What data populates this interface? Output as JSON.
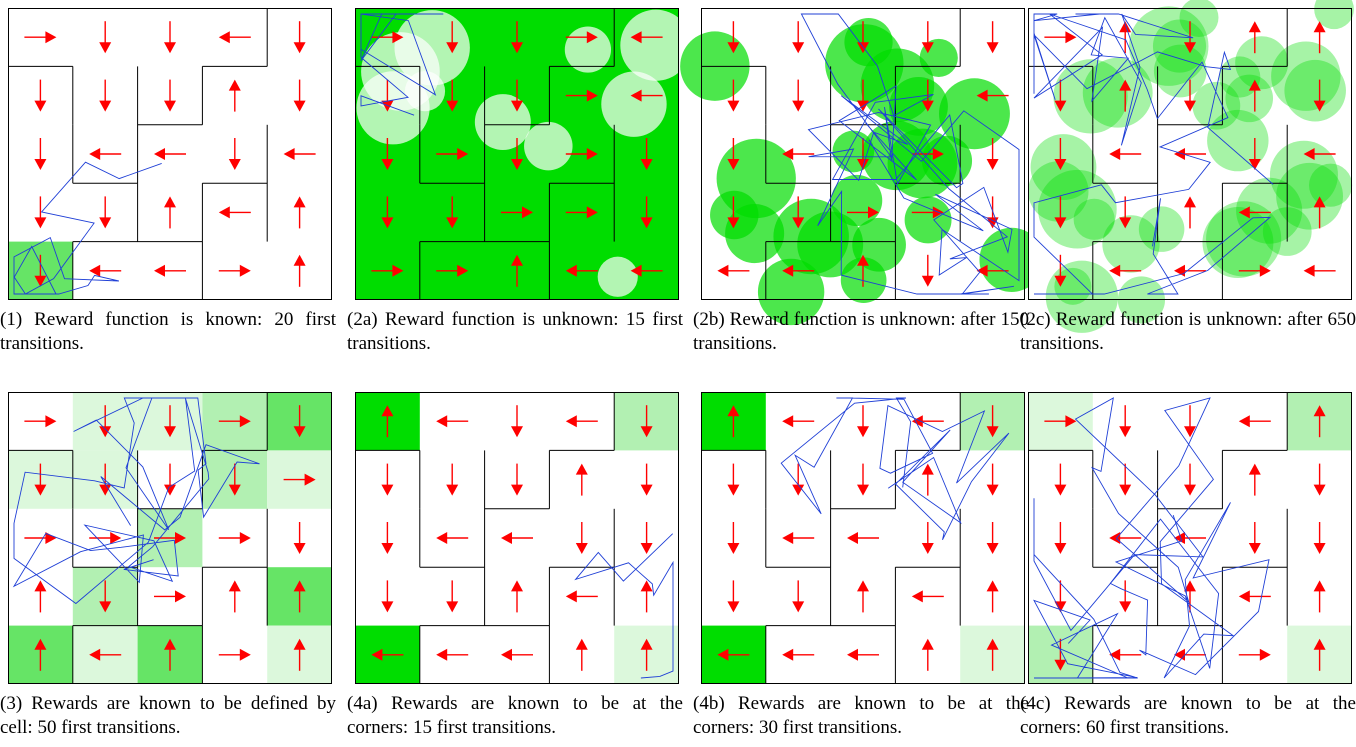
{
  "colors": {
    "arrow": "#ff0000",
    "trajectory": "#1f3fd6",
    "wall": "#000000",
    "reward_bright": "#00dd00",
    "reward_mid": "#66e466",
    "reward_light": "#b2f0b2",
    "reward_faint": "#dcf8dc"
  },
  "panels": [
    {
      "caption": "(1) Reward function is known: 20 first transitions.",
      "background": "white",
      "cells": [
        [
          4,
          0,
          "mid"
        ]
      ],
      "arrows": [
        [
          "R",
          "D",
          "D",
          "L",
          "D"
        ],
        [
          "D",
          "D",
          "D",
          "U",
          "D"
        ],
        [
          "D",
          "L",
          "L",
          "D",
          "L"
        ],
        [
          "D",
          "D",
          "U",
          "L",
          "U"
        ],
        [
          "D",
          "L",
          "L",
          "R",
          "U"
        ]
      ]
    },
    {
      "caption": "(2a) Reward function is unknown: 15 first transitions.",
      "background": "green-bright",
      "cells": [],
      "arrows": [
        [
          "R",
          "D",
          "D",
          "R",
          "L"
        ],
        [
          "D",
          "D",
          "D",
          "R",
          "L"
        ],
        [
          "D",
          "R",
          "D",
          "R",
          "D"
        ],
        [
          "D",
          "D",
          "R",
          "R",
          "D"
        ],
        [
          "R",
          "R",
          "U",
          "L",
          "L"
        ]
      ]
    },
    {
      "caption": "(2b) Reward function is unknown: after 150 transitions.",
      "background": "green-mottled",
      "cells": [],
      "arrows": [
        [
          "D",
          "D",
          "D",
          "D",
          "D"
        ],
        [
          "D",
          "D",
          "D",
          "D",
          "L"
        ],
        [
          "D",
          "L",
          "D",
          "R",
          "D"
        ],
        [
          "D",
          "D",
          "R",
          "R",
          "D"
        ],
        [
          "L",
          "L",
          "U",
          "D",
          "L"
        ]
      ]
    },
    {
      "caption": "(2c) Reward function is unknown: after 650 transitions.",
      "background": "green-faint",
      "cells": [],
      "arrows": [
        [
          "R",
          "U",
          "D",
          "U",
          "U"
        ],
        [
          "D",
          "U",
          "D",
          "U",
          "D"
        ],
        [
          "D",
          "L",
          "L",
          "D",
          "L"
        ],
        [
          "D",
          "D",
          "U",
          "L",
          "U"
        ],
        [
          "D",
          "L",
          "L",
          "R",
          "L"
        ]
      ]
    },
    {
      "caption": "(3) Rewards are known to be defined by cell: 50 first transitions.",
      "background": "white",
      "cells": [
        [
          0,
          1,
          "faint"
        ],
        [
          0,
          2,
          "faint"
        ],
        [
          0,
          3,
          "light"
        ],
        [
          0,
          4,
          "mid"
        ],
        [
          1,
          0,
          "faint"
        ],
        [
          1,
          1,
          "faint"
        ],
        [
          1,
          3,
          "light"
        ],
        [
          1,
          4,
          "faint"
        ],
        [
          2,
          2,
          "light"
        ],
        [
          3,
          1,
          "light"
        ],
        [
          3,
          4,
          "mid"
        ],
        [
          4,
          0,
          "mid"
        ],
        [
          4,
          1,
          "faint"
        ],
        [
          4,
          2,
          "mid"
        ],
        [
          4,
          4,
          "faint"
        ]
      ],
      "arrows": [
        [
          "R",
          "D",
          "D",
          "R",
          "D"
        ],
        [
          "D",
          "D",
          "D",
          "D",
          "R"
        ],
        [
          "R",
          "R",
          "R",
          "R",
          "D"
        ],
        [
          "U",
          "D",
          "R",
          "U",
          "U"
        ],
        [
          "U",
          "L",
          "U",
          "R",
          "U"
        ]
      ]
    },
    {
      "caption": "(4a) Rewards are known to be at the corners: 15 first transitions.",
      "background": "white",
      "cells": [
        [
          0,
          0,
          "bright"
        ],
        [
          0,
          4,
          "light"
        ],
        [
          4,
          0,
          "bright"
        ],
        [
          4,
          4,
          "faint"
        ]
      ],
      "arrows": [
        [
          "U",
          "L",
          "D",
          "L",
          "D"
        ],
        [
          "D",
          "D",
          "D",
          "U",
          "D"
        ],
        [
          "D",
          "L",
          "L",
          "D",
          "D"
        ],
        [
          "D",
          "D",
          "U",
          "L",
          "U"
        ],
        [
          "L",
          "L",
          "L",
          "U",
          "U"
        ]
      ]
    },
    {
      "caption": "(4b) Rewards are known to be at the corners: 30 first transitions.",
      "background": "white",
      "cells": [
        [
          0,
          0,
          "bright"
        ],
        [
          0,
          4,
          "light"
        ],
        [
          4,
          0,
          "bright"
        ],
        [
          4,
          4,
          "faint"
        ]
      ],
      "arrows": [
        [
          "U",
          "L",
          "D",
          "L",
          "D"
        ],
        [
          "D",
          "D",
          "D",
          "U",
          "D"
        ],
        [
          "D",
          "L",
          "L",
          "D",
          "D"
        ],
        [
          "D",
          "D",
          "U",
          "L",
          "U"
        ],
        [
          "L",
          "L",
          "L",
          "U",
          "U"
        ]
      ]
    },
    {
      "caption": "(4c) Rewards are known to be at the corners: 60 first transitions.",
      "background": "white",
      "cells": [
        [
          0,
          0,
          "faint"
        ],
        [
          0,
          4,
          "light"
        ],
        [
          4,
          0,
          "light"
        ],
        [
          4,
          4,
          "faint"
        ]
      ],
      "arrows": [
        [
          "R",
          "D",
          "D",
          "L",
          "U"
        ],
        [
          "D",
          "D",
          "D",
          "U",
          "D"
        ],
        [
          "D",
          "L",
          "L",
          "D",
          "D"
        ],
        [
          "D",
          "D",
          "U",
          "L",
          "U"
        ],
        [
          "D",
          "L",
          "L",
          "R",
          "U"
        ]
      ]
    }
  ]
}
